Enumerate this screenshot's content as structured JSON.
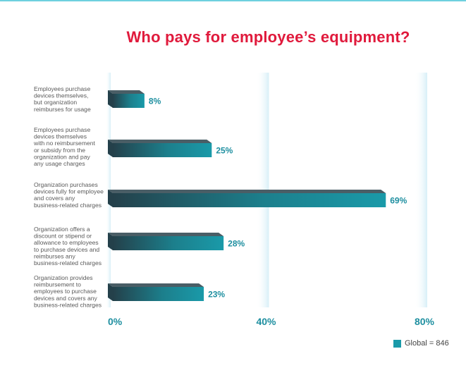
{
  "chart_data": {
    "type": "bar",
    "orientation": "horizontal",
    "title": "Who pays for employee’s equipment?",
    "categories": [
      "Employees purchase devices themselves, but organization reimburses for usage",
      "Employees purchase devices themselves with no reimbursement or subsidy from the organization and pay any usage charges",
      "Organization purchases devices fully for employee and covers any business-related charges",
      "Organization offers a discount or stipend or allowance to employees to purchase devices and reimburses any business-related charges",
      "Organization provides reimbursement to employees to purchase devices and covers any business-related charges"
    ],
    "category_lines": [
      [
        "Employees purchase",
        "devices themselves,",
        "but organization",
        "reimburses for usage"
      ],
      [
        "Employees purchase",
        "devices themselves",
        "with no reimbursement",
        "or subsidy from the",
        "organization and pay",
        "any usage charges"
      ],
      [
        "Organization purchases",
        "devices fully for employee",
        "and covers any",
        "business-related charges"
      ],
      [
        "Organization offers a",
        "discount or stipend or",
        "allowance to employees",
        "to purchase devices and",
        "reimburses any",
        "business-related charges"
      ],
      [
        "Organization provides",
        "reimbursement to",
        "employees to purchase",
        "devices and covers any",
        "business-related charges"
      ]
    ],
    "series": [
      {
        "name": "Global = 846",
        "values": [
          8,
          25,
          69,
          28,
          23
        ]
      }
    ],
    "value_labels": [
      "8%",
      "25%",
      "69%",
      "28%",
      "23%"
    ],
    "xlim": [
      0,
      80
    ],
    "x_ticks": [
      0,
      40,
      80
    ],
    "x_tick_labels": [
      "0%",
      "40%",
      "80%"
    ],
    "grid": true,
    "legend_position": "bottom-right",
    "colors": {
      "bar_front": "#1a9aa9",
      "bar_dark": "#24404a",
      "bar_top": "#4a5e66",
      "value_text": "#1e8fa0",
      "title": "#e01a3c",
      "gridline": "#d7eff7"
    }
  }
}
